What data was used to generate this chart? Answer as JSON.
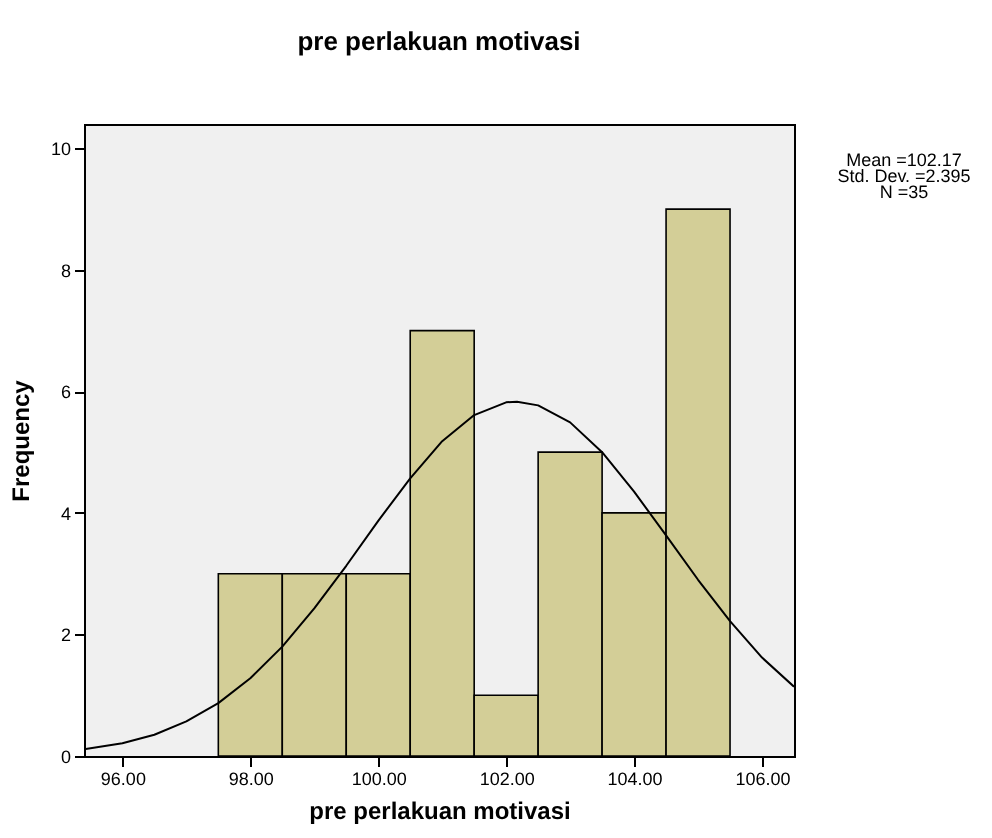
{
  "chart_data": {
    "type": "histogram",
    "title": "pre perlakuan motivasi",
    "xlabel": "pre perlakuan motivasi",
    "ylabel": "Frequency",
    "bins": [
      97.5,
      98.5,
      99.5,
      100.5,
      101.5,
      102.5,
      103.5,
      104.5,
      105.5
    ],
    "values": [
      3,
      3,
      3,
      7,
      1,
      5,
      4,
      9
    ],
    "color": "#d3ce97",
    "series": [
      {
        "type": "line",
        "color": "#000000",
        "x": [
          95.4,
          96,
          96.5,
          97,
          97.5,
          98,
          98.5,
          99,
          99.5,
          100,
          100.5,
          101,
          101.5,
          102,
          102.17,
          102.5,
          103,
          103.5,
          104,
          104.5,
          105,
          105.5,
          106,
          106.5
        ],
        "values": [
          0.11,
          0.21,
          0.35,
          0.57,
          0.87,
          1.28,
          1.8,
          2.43,
          3.13,
          3.87,
          4.57,
          5.18,
          5.61,
          5.82,
          5.83,
          5.77,
          5.49,
          5.0,
          4.35,
          3.63,
          2.9,
          2.22,
          1.62,
          1.14
        ]
      }
    ],
    "xlim": [
      95.4,
      106.5
    ],
    "xticks": [
      {
        "value": 96,
        "label": "96.00"
      },
      {
        "value": 98,
        "label": "98.00"
      },
      {
        "value": 100,
        "label": "100.00"
      },
      {
        "value": 102,
        "label": "102.00"
      },
      {
        "value": 104,
        "label": "104.00"
      },
      {
        "value": 106,
        "label": "106.00"
      }
    ],
    "ylim": [
      0,
      10.4
    ],
    "yticks": [
      0,
      2,
      4,
      6,
      8,
      10
    ],
    "grid": false,
    "annotations": [
      "Mean =102.17",
      "Std. Dev. =2.395",
      "N =35"
    ]
  }
}
